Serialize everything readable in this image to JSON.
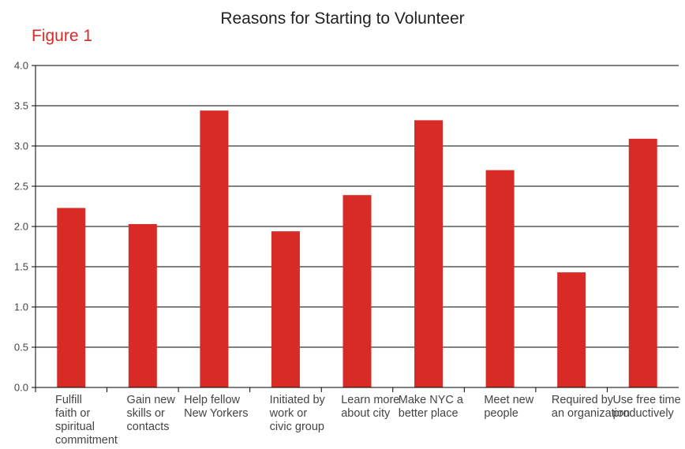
{
  "header": {
    "title": "Reasons for Starting to Volunteer",
    "figure_label": "Figure 1"
  },
  "colors": {
    "bar": "#d92b26",
    "grid": "#000000"
  },
  "chart_data": {
    "type": "bar",
    "title": "Reasons for Starting to Volunteer",
    "xlabel": "",
    "ylabel": "",
    "ylim": [
      0,
      4.0
    ],
    "yticks": [
      "0.0",
      "0.5",
      "1.0",
      "1.5",
      "2.0",
      "2.5",
      "3.0",
      "3.5",
      "4.0"
    ],
    "grid": true,
    "categories": [
      "Fulfill\nfaith or\nspiritual\ncommitment",
      "Gain new\nskills or\ncontacts",
      "Help fellow\nNew Yorkers",
      "Initiated by\nwork or\ncivic group",
      "Learn more\nabout city",
      "Make NYC a\nbetter place",
      "Meet new\npeople",
      "Required by\nan organization",
      "Use free time\nproductively"
    ],
    "values": [
      2.23,
      2.03,
      3.44,
      1.94,
      2.39,
      3.32,
      2.7,
      1.43,
      3.09
    ]
  }
}
